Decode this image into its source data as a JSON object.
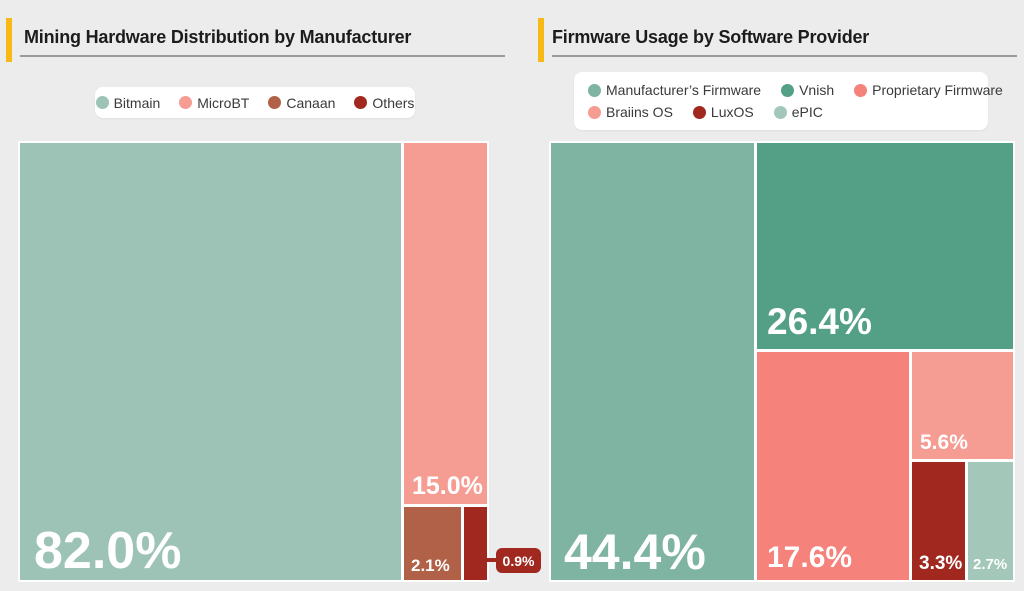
{
  "page": {
    "background": "#ececec",
    "accent_color": "#f7b916",
    "frame_color": "#ffffff",
    "rule_color": "#9a9a9a"
  },
  "chart_data": [
    {
      "type": "treemap",
      "title": "Mining Hardware Distribution by Manufacturer",
      "legend_position": "top-center",
      "value_format": "percent",
      "series": [
        {
          "name": "Bitmain",
          "value": 82.0,
          "label": "82.0%",
          "color": "#9cc3b5"
        },
        {
          "name": "MicroBT",
          "value": 15.0,
          "label": "15.0%",
          "color": "#f59c93"
        },
        {
          "name": "Canaan",
          "value": 2.1,
          "label": "2.1%",
          "color": "#b16148"
        },
        {
          "name": "Others",
          "value": 0.9,
          "label": "0.9%",
          "color": "#a1281f",
          "label_style": "external-callout"
        }
      ]
    },
    {
      "type": "treemap",
      "title": "Firmware Usage by Software Provider",
      "legend_position": "top-center",
      "value_format": "percent",
      "series": [
        {
          "name": "Manufacturer’s Firmware",
          "value": 44.4,
          "label": "44.4%",
          "color": "#7eb4a1"
        },
        {
          "name": "Vnish",
          "value": 26.4,
          "label": "26.4%",
          "color": "#54a086"
        },
        {
          "name": "Proprietary Firmware",
          "value": 17.6,
          "label": "17.6%",
          "color": "#f5827b"
        },
        {
          "name": "Braiins OS",
          "value": 5.6,
          "label": "5.6%",
          "color": "#f59c93"
        },
        {
          "name": "LuxOS",
          "value": 3.3,
          "label": "3.3%",
          "color": "#a1281f"
        },
        {
          "name": "ePIC",
          "value": 2.7,
          "label": "2.7%",
          "color": "#a3c8ba"
        }
      ]
    }
  ]
}
